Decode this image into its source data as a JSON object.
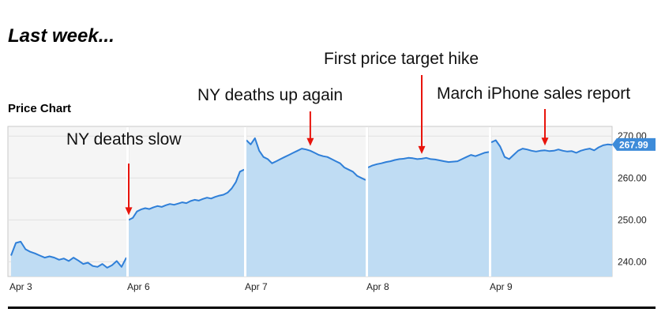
{
  "heading": "Last week...",
  "chart_data": {
    "type": "area",
    "title": "Price Chart",
    "xlabel": "",
    "ylabel": "",
    "ylim": [
      236.5,
      272.3
    ],
    "yticks": [
      "240.00",
      "250.00",
      "260.00",
      "270.00"
    ],
    "ytick_values": [
      240,
      250,
      260,
      270
    ],
    "x_ticks": [
      "Apr 3",
      "Apr 6",
      "Apr 7",
      "Apr 8",
      "Apr 9"
    ],
    "last_value": "267.99",
    "grid": true,
    "colors": {
      "line": "#2f7fd8",
      "fill": "#bfdcf3",
      "marker": "#3d8bd9",
      "annotation": "#e8140c"
    },
    "series": [
      {
        "day": "Apr 3",
        "values": [
          241.5,
          244.5,
          244.8,
          243.0,
          242.4,
          242.0,
          241.5,
          241.0,
          241.3,
          241.0,
          240.5,
          240.8,
          240.2,
          241.0,
          240.3,
          239.5,
          239.8,
          239.0,
          238.8,
          239.5,
          238.6,
          239.2,
          240.2,
          238.8,
          241.0
        ]
      },
      {
        "day": "Apr 6",
        "values": [
          250.0,
          250.5,
          252.0,
          252.5,
          252.8,
          252.6,
          253.0,
          253.3,
          253.1,
          253.5,
          253.8,
          253.6,
          253.9,
          254.2,
          254.0,
          254.5,
          254.8,
          254.6,
          255.0,
          255.3,
          255.1,
          255.5,
          255.8,
          256.0,
          256.5,
          257.5,
          259.0,
          261.5,
          262.0
        ]
      },
      {
        "day": "Apr 7",
        "values": [
          269.0,
          268.0,
          269.5,
          266.5,
          265.0,
          264.5,
          263.5,
          264.0,
          264.5,
          265.0,
          265.5,
          266.0,
          266.5,
          267.0,
          266.8,
          266.5,
          266.0,
          265.5,
          265.2,
          265.0,
          264.5,
          264.0,
          263.5,
          262.5,
          262.0,
          261.5,
          260.5,
          260.0,
          259.5
        ]
      },
      {
        "day": "Apr 8",
        "values": [
          262.5,
          263.0,
          263.3,
          263.5,
          263.8,
          264.0,
          264.3,
          264.5,
          264.6,
          264.8,
          264.7,
          264.5,
          264.6,
          264.8,
          264.5,
          264.4,
          264.2,
          264.0,
          263.8,
          263.9,
          264.0,
          264.5,
          265.0,
          265.5,
          265.2,
          265.6,
          266.0,
          266.2
        ]
      },
      {
        "day": "Apr 9",
        "values": [
          268.5,
          269.0,
          267.5,
          265.0,
          264.5,
          265.5,
          266.5,
          267.0,
          266.8,
          266.5,
          266.3,
          266.5,
          266.6,
          266.4,
          266.5,
          266.8,
          266.5,
          266.3,
          266.4,
          266.0,
          266.5,
          266.8,
          267.0,
          266.6,
          267.3,
          267.8,
          268.0,
          267.9
        ]
      }
    ],
    "annotations": [
      {
        "text": "NY deaths slow",
        "day": "Apr 6",
        "at_index": 0
      },
      {
        "text": "NY deaths up again",
        "day": "Apr 7",
        "at_index": 15
      },
      {
        "text": "First price target hike",
        "day": "Apr 8",
        "at_index": 12
      },
      {
        "text": "March iPhone sales report",
        "day": "Apr 9",
        "at_index": 12
      }
    ]
  }
}
